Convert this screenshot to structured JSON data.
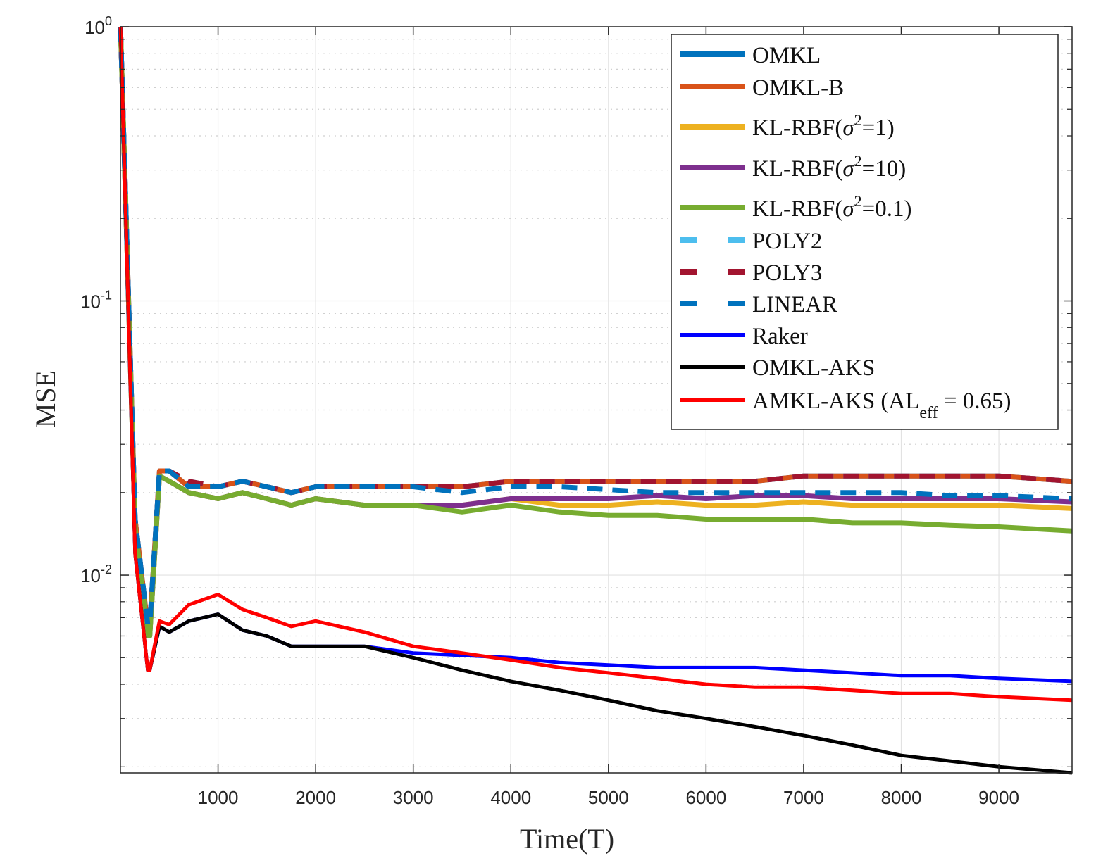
{
  "chart_data": {
    "type": "line",
    "title": "",
    "xlabel": "Time(T)",
    "ylabel": "MSE",
    "xscale": "linear",
    "yscale": "log",
    "xlim": [
      0,
      9750
    ],
    "ylim": [
      0.0019,
      1
    ],
    "grid": true,
    "legend_position": "top-right",
    "x_ticks": [
      1000,
      2000,
      3000,
      4000,
      5000,
      6000,
      7000,
      8000,
      9000
    ],
    "x_tick_labels": [
      "1000",
      "2000",
      "3000",
      "4000",
      "5000",
      "6000",
      "7000",
      "8000",
      "9000"
    ],
    "y_ticks": [
      {
        "value": 1,
        "base": "10",
        "exp": "0"
      },
      {
        "value": 0.1,
        "base": "10",
        "exp": "-1"
      },
      {
        "value": 0.01,
        "base": "10",
        "exp": "-2"
      }
    ],
    "x": [
      1,
      150,
      280,
      300,
      400,
      500,
      700,
      1000,
      1250,
      1500,
      1750,
      2000,
      2500,
      3000,
      3500,
      4000,
      4500,
      5000,
      5500,
      6000,
      6500,
      7000,
      7500,
      8000,
      8500,
      9000,
      9750
    ],
    "series": [
      {
        "name": "OMKL",
        "color": "#0072BD",
        "dash": "solid",
        "width": 7,
        "values": [
          1.0,
          0.016,
          0.0065,
          0.0065,
          0.024,
          0.024,
          0.021,
          0.021,
          0.022,
          0.021,
          0.02,
          0.021,
          0.021,
          0.021,
          0.021,
          0.022,
          0.022,
          0.022,
          0.022,
          0.022,
          0.022,
          0.023,
          0.023,
          0.023,
          0.023,
          0.023,
          0.022
        ]
      },
      {
        "name": "OMKL-B",
        "color": "#D95319",
        "dash": "solid",
        "width": 7,
        "values": [
          1.0,
          0.016,
          0.0065,
          0.0065,
          0.024,
          0.024,
          0.021,
          0.021,
          0.022,
          0.021,
          0.02,
          0.021,
          0.021,
          0.021,
          0.021,
          0.022,
          0.022,
          0.022,
          0.022,
          0.022,
          0.022,
          0.023,
          0.023,
          0.023,
          0.023,
          0.023,
          0.022
        ]
      },
      {
        "name": "KL-RBF(σ²=1)",
        "legend_base": "KL-RBF(",
        "legend_sup": "2",
        "legend_rest": "=1)",
        "color": "#EDB120",
        "dash": "solid",
        "width": 7,
        "values": [
          1.0,
          0.015,
          0.006,
          0.006,
          0.023,
          0.022,
          0.02,
          0.019,
          0.02,
          0.019,
          0.018,
          0.019,
          0.018,
          0.018,
          0.018,
          0.019,
          0.018,
          0.018,
          0.0185,
          0.018,
          0.018,
          0.0185,
          0.018,
          0.018,
          0.018,
          0.018,
          0.0175
        ]
      },
      {
        "name": "KL-RBF(σ²=10)",
        "legend_base": "KL-RBF(",
        "legend_sup": "2",
        "legend_rest": "=10)",
        "color": "#7E2F8E",
        "dash": "solid",
        "width": 7,
        "values": [
          1.0,
          0.015,
          0.006,
          0.006,
          0.023,
          0.022,
          0.02,
          0.019,
          0.02,
          0.019,
          0.018,
          0.019,
          0.018,
          0.018,
          0.018,
          0.019,
          0.019,
          0.019,
          0.0195,
          0.019,
          0.0195,
          0.0195,
          0.019,
          0.019,
          0.019,
          0.019,
          0.0185
        ]
      },
      {
        "name": "KL-RBF(σ²=0.1)",
        "legend_base": "KL-RBF(",
        "legend_sup": "2",
        "legend_rest": "=0.1)",
        "color": "#77AC30",
        "dash": "solid",
        "width": 7,
        "values": [
          1.0,
          0.015,
          0.006,
          0.006,
          0.023,
          0.022,
          0.02,
          0.019,
          0.02,
          0.019,
          0.018,
          0.019,
          0.018,
          0.018,
          0.017,
          0.018,
          0.017,
          0.0165,
          0.0165,
          0.016,
          0.016,
          0.016,
          0.0155,
          0.0155,
          0.0152,
          0.015,
          0.0145
        ]
      },
      {
        "name": "POLY2",
        "color": "#4DBEEE",
        "dash": "dashed",
        "width": 7,
        "values": [
          1.0,
          0.016,
          0.0066,
          0.0066,
          0.024,
          0.024,
          0.022,
          0.021,
          0.022,
          0.021,
          0.02,
          0.021,
          0.021,
          0.021,
          0.021,
          0.022,
          0.022,
          0.022,
          0.022,
          0.022,
          0.022,
          0.023,
          0.023,
          0.023,
          0.023,
          0.023,
          0.022
        ]
      },
      {
        "name": "POLY3",
        "color": "#A2142F",
        "dash": "dashed",
        "width": 7,
        "values": [
          1.0,
          0.016,
          0.0066,
          0.0066,
          0.024,
          0.024,
          0.022,
          0.021,
          0.022,
          0.021,
          0.02,
          0.021,
          0.021,
          0.021,
          0.021,
          0.022,
          0.022,
          0.022,
          0.022,
          0.022,
          0.022,
          0.023,
          0.023,
          0.023,
          0.023,
          0.023,
          0.022
        ]
      },
      {
        "name": "LINEAR",
        "color": "#0072BD",
        "dash": "dashed",
        "width": 7,
        "values": [
          1.0,
          0.016,
          0.0066,
          0.0066,
          0.024,
          0.024,
          0.021,
          0.021,
          0.022,
          0.021,
          0.02,
          0.021,
          0.021,
          0.021,
          0.02,
          0.021,
          0.021,
          0.0205,
          0.02,
          0.02,
          0.02,
          0.02,
          0.02,
          0.02,
          0.0195,
          0.0195,
          0.019
        ]
      },
      {
        "name": "Raker",
        "color": "#0000FF",
        "dash": "solid",
        "width": 5,
        "values": [
          1.0,
          0.012,
          0.0045,
          0.0045,
          0.0065,
          0.0062,
          0.0068,
          0.0072,
          0.0063,
          0.006,
          0.0055,
          0.0055,
          0.0055,
          0.0052,
          0.0051,
          0.005,
          0.0048,
          0.0047,
          0.0046,
          0.0046,
          0.0046,
          0.0045,
          0.0044,
          0.0043,
          0.0043,
          0.0042,
          0.0041
        ]
      },
      {
        "name": "OMKL-AKS",
        "color": "#000000",
        "dash": "solid",
        "width": 5,
        "values": [
          1.0,
          0.012,
          0.0045,
          0.0045,
          0.0065,
          0.0062,
          0.0068,
          0.0072,
          0.0063,
          0.006,
          0.0055,
          0.0055,
          0.0055,
          0.005,
          0.0045,
          0.0041,
          0.0038,
          0.0035,
          0.0032,
          0.003,
          0.0028,
          0.0026,
          0.0024,
          0.0022,
          0.0021,
          0.002,
          0.0019
        ]
      },
      {
        "name": "AMKL-AKS (AL_eff = 0.65)",
        "legend_base": "AMKL-AKS (AL",
        "legend_sub": "eff",
        "legend_rest": " = 0.65)",
        "color": "#FF0000",
        "dash": "solid",
        "width": 5,
        "values": [
          1.0,
          0.012,
          0.0045,
          0.0045,
          0.0068,
          0.0066,
          0.0078,
          0.0085,
          0.0075,
          0.007,
          0.0065,
          0.0068,
          0.0062,
          0.0055,
          0.0052,
          0.0049,
          0.0046,
          0.0044,
          0.0042,
          0.004,
          0.0039,
          0.0039,
          0.0038,
          0.0037,
          0.0037,
          0.0036,
          0.0035
        ]
      }
    ]
  }
}
